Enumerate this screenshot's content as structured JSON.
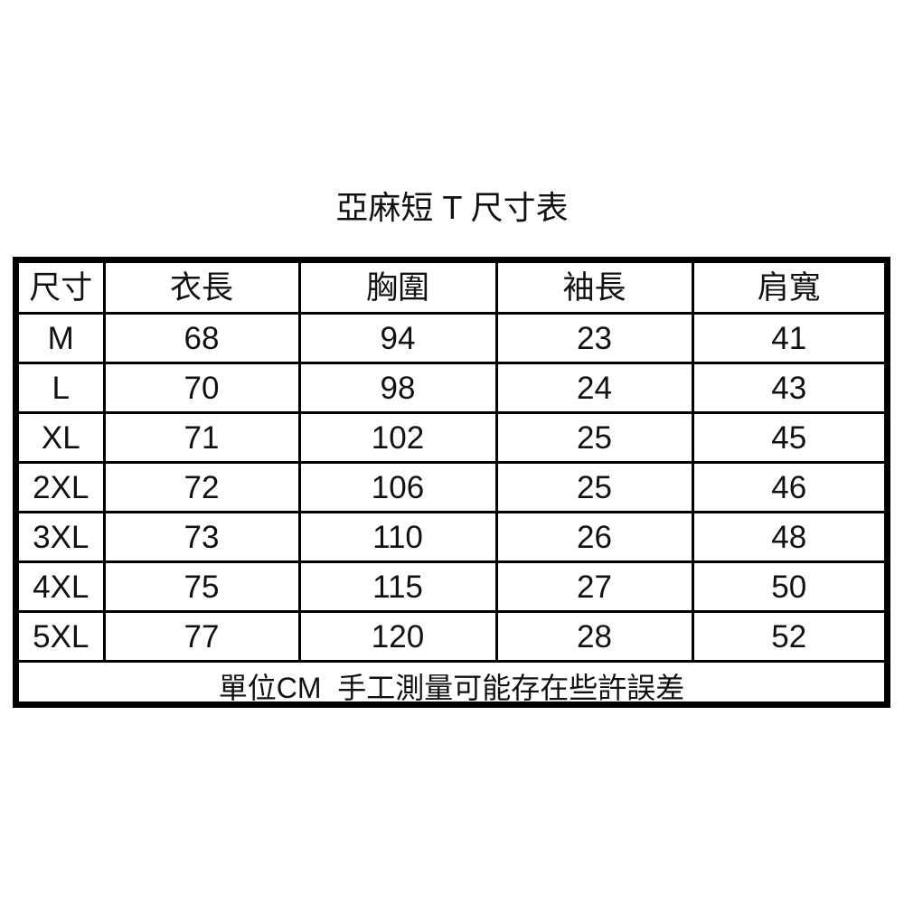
{
  "title": "亞麻短 T 尺寸表",
  "table": {
    "headers": [
      "尺寸",
      "衣長",
      "胸圍",
      "袖長",
      "肩寬"
    ],
    "rows": [
      [
        "M",
        "68",
        "94",
        "23",
        "41"
      ],
      [
        "L",
        "70",
        "98",
        "24",
        "43"
      ],
      [
        "XL",
        "71",
        "102",
        "25",
        "45"
      ],
      [
        "2XL",
        "72",
        "106",
        "25",
        "46"
      ],
      [
        "3XL",
        "73",
        "110",
        "26",
        "48"
      ],
      [
        "4XL",
        "75",
        "115",
        "27",
        "50"
      ],
      [
        "5XL",
        "77",
        "120",
        "28",
        "52"
      ]
    ],
    "note": "單位CM  手工測量可能存在些許誤差"
  }
}
